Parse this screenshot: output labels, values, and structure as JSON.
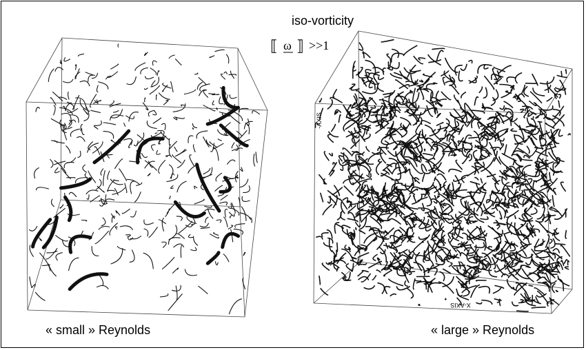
{
  "title": "iso-vorticity",
  "condition": {
    "open": "⟦",
    "symbol": "ω",
    "close": "⟧",
    "relation": ">>1"
  },
  "panels": [
    {
      "label": "« small » Reynolds"
    },
    {
      "label": "« large » Reynolds",
      "axis_labels": [
        "-AXIS",
        "X-AXIS"
      ]
    }
  ]
}
